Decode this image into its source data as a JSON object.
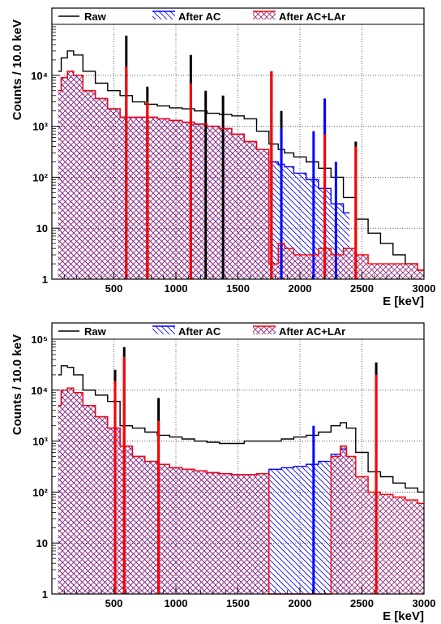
{
  "colors": {
    "raw": "#000000",
    "after_ac": "#0000ff",
    "after_ac_lar": "#ff0000",
    "hatch_fill": "#b8306e"
  },
  "chart_data": [
    {
      "type": "line",
      "subtype": "histogram-step",
      "xlabel": "E [keV]",
      "ylabel": "Counts / 10.0 keV",
      "xlim": [
        0,
        3000
      ],
      "ylim": [
        1,
        100000
      ],
      "yscale": "log",
      "grid": true,
      "legend": "top",
      "x_ticks": [
        500,
        1000,
        1500,
        2000,
        2500,
        3000
      ],
      "y_ticks": [
        {
          "value": 1,
          "label": "1"
        },
        {
          "value": 10,
          "label": "10"
        },
        {
          "value": 100,
          "label": "10²"
        },
        {
          "value": 1000,
          "label": "10³"
        },
        {
          "value": 10000,
          "label": "10⁴"
        }
      ],
      "series": [
        {
          "name": "Raw",
          "color": "#000000",
          "x": [
            50,
            100,
            150,
            200,
            300,
            400,
            500,
            600,
            700,
            800,
            900,
            1000,
            1100,
            1200,
            1300,
            1400,
            1500,
            1600,
            1700,
            1800,
            1850,
            1900,
            2000,
            2100,
            2200,
            2300,
            2400,
            2500,
            2600,
            2700,
            2800,
            2900,
            3000
          ],
          "y": [
            12000,
            22000,
            30000,
            25000,
            12000,
            7000,
            5000,
            4000,
            3000,
            2700,
            2500,
            2300,
            2200,
            2000,
            1800,
            1700,
            1600,
            1400,
            800,
            450,
            350,
            300,
            250,
            200,
            150,
            100,
            40,
            15,
            8,
            5,
            3,
            2,
            1.5
          ],
          "lines": [
            {
              "x": 600,
              "y": 60000
            },
            {
              "x": 770,
              "y": 6000
            },
            {
              "x": 1120,
              "y": 25000
            },
            {
              "x": 1240,
              "y": 5000
            },
            {
              "x": 1380,
              "y": 4000
            },
            {
              "x": 1770,
              "y": 12000
            },
            {
              "x": 1850,
              "y": 2000
            },
            {
              "x": 2200,
              "y": 3000
            },
            {
              "x": 2450,
              "y": 500
            }
          ]
        },
        {
          "name": "After AC",
          "color": "#0000ff",
          "x": [
            50,
            100,
            150,
            200,
            300,
            400,
            500,
            600,
            700,
            800,
            900,
            1000,
            1100,
            1200,
            1300,
            1400,
            1500,
            1600,
            1700,
            1800,
            1850,
            1900,
            2000,
            2100,
            2200,
            2300,
            2400
          ],
          "y": [
            5000,
            9000,
            12000,
            10000,
            5000,
            3500,
            2200,
            1500,
            1500,
            1500,
            1400,
            1300,
            1200,
            1100,
            1000,
            900,
            700,
            500,
            350,
            200,
            180,
            160,
            120,
            90,
            60,
            30,
            20
          ],
          "lines": [
            {
              "x": 1850,
              "y": 900
            },
            {
              "x": 2110,
              "y": 800
            },
            {
              "x": 2200,
              "y": 3500
            },
            {
              "x": 2290,
              "y": 200
            }
          ]
        },
        {
          "name": "After AC+LAr",
          "color": "#ff0000",
          "x": [
            50,
            100,
            150,
            200,
            300,
            400,
            500,
            600,
            700,
            800,
            900,
            1000,
            1100,
            1200,
            1300,
            1400,
            1500,
            1600,
            1700,
            1800,
            1850,
            1900,
            2000,
            2100,
            2200,
            2300,
            2400,
            2500,
            2600,
            2700,
            2800,
            2900,
            3000
          ],
          "y": [
            5000,
            9000,
            12000,
            10000,
            5000,
            3500,
            2200,
            1500,
            1500,
            1500,
            1400,
            1300,
            1200,
            1100,
            1000,
            900,
            700,
            500,
            350,
            2,
            5,
            4,
            3,
            3,
            4,
            3,
            4,
            3,
            2,
            2,
            2,
            2,
            1.5
          ],
          "lines": [
            {
              "x": 600,
              "y": 15000
            },
            {
              "x": 770,
              "y": 3000
            },
            {
              "x": 1120,
              "y": 7000
            },
            {
              "x": 1770,
              "y": 12000
            },
            {
              "x": 2200,
              "y": 700
            },
            {
              "x": 2450,
              "y": 400
            }
          ]
        }
      ]
    },
    {
      "type": "line",
      "subtype": "histogram-step",
      "xlabel": "E [keV]",
      "ylabel": "Counts / 10.0 keV",
      "xlim": [
        0,
        3000
      ],
      "ylim": [
        1,
        100000
      ],
      "yscale": "log",
      "grid": true,
      "legend": "top",
      "x_ticks": [
        500,
        1000,
        1500,
        2000,
        2500,
        3000
      ],
      "y_ticks": [
        {
          "value": 1,
          "label": "1"
        },
        {
          "value": 10,
          "label": "10"
        },
        {
          "value": 100,
          "label": "10²"
        },
        {
          "value": 1000,
          "label": "10³"
        },
        {
          "value": 10000,
          "label": "10⁴"
        },
        {
          "value": 100000,
          "label": "10⁵"
        }
      ],
      "series": [
        {
          "name": "Raw",
          "color": "#000000",
          "x": [
            50,
            100,
            150,
            200,
            300,
            400,
            500,
            600,
            700,
            800,
            900,
            1000,
            1100,
            1200,
            1300,
            1400,
            1500,
            1600,
            1700,
            1800,
            1900,
            2000,
            2100,
            2200,
            2300,
            2350,
            2400,
            2500,
            2600,
            2700,
            2800,
            2900,
            3000
          ],
          "y": [
            20000,
            30000,
            28000,
            20000,
            10000,
            8000,
            6000,
            2000,
            1800,
            1500,
            1300,
            1200,
            1100,
            1000,
            950,
            900,
            900,
            1000,
            1000,
            1000,
            1100,
            1200,
            1300,
            1500,
            2000,
            2300,
            1800,
            600,
            250,
            200,
            150,
            120,
            100
          ],
          "lines": [
            {
              "x": 510,
              "y": 25000
            },
            {
              "x": 583,
              "y": 70000
            },
            {
              "x": 860,
              "y": 7000
            },
            {
              "x": 2615,
              "y": 35000
            }
          ]
        },
        {
          "name": "After AC",
          "color": "#0000ff",
          "x": [
            50,
            100,
            150,
            200,
            300,
            400,
            500,
            600,
            700,
            800,
            900,
            1000,
            1100,
            1200,
            1300,
            1400,
            1500,
            1600,
            1700,
            1800,
            1900,
            2000,
            2100,
            2200,
            2300,
            2350,
            2400
          ],
          "y": [
            5000,
            10000,
            11000,
            9000,
            5000,
            3000,
            1800,
            800,
            500,
            400,
            350,
            300,
            280,
            260,
            240,
            230,
            220,
            220,
            230,
            280,
            300,
            320,
            350,
            400,
            550,
            700,
            500
          ],
          "lines": [
            {
              "x": 2110,
              "y": 2000
            }
          ]
        },
        {
          "name": "After AC+LAr",
          "color": "#ff0000",
          "x": [
            50,
            100,
            150,
            200,
            300,
            400,
            500,
            600,
            700,
            800,
            900,
            1000,
            1100,
            1200,
            1300,
            1400,
            1500,
            1600,
            1700,
            1800,
            1900,
            2000,
            2100,
            2200,
            2300,
            2350,
            2400,
            2500,
            2600,
            2700,
            2800,
            2900,
            3000
          ],
          "y": [
            5000,
            10000,
            11000,
            9000,
            5000,
            3000,
            1800,
            800,
            500,
            400,
            350,
            300,
            280,
            260,
            240,
            230,
            220,
            220,
            230,
            1,
            1,
            1,
            1,
            1,
            500,
            800,
            500,
            200,
            100,
            90,
            80,
            70,
            60
          ],
          "lines": [
            {
              "x": 510,
              "y": 15000
            },
            {
              "x": 583,
              "y": 45000
            },
            {
              "x": 860,
              "y": 2500
            },
            {
              "x": 2615,
              "y": 20000
            }
          ]
        }
      ]
    }
  ],
  "panels": [
    {
      "legend": [
        {
          "name": "legend-raw",
          "label": "Raw"
        },
        {
          "name": "legend-after-ac",
          "label": "After AC"
        },
        {
          "name": "legend-after-ac-lar",
          "label": "After AC+LAr"
        }
      ]
    },
    {
      "legend": [
        {
          "name": "legend-raw",
          "label": "Raw"
        },
        {
          "name": "legend-after-ac",
          "label": "After AC"
        },
        {
          "name": "legend-after-ac-lar",
          "label": "After AC+LAr"
        }
      ]
    }
  ]
}
